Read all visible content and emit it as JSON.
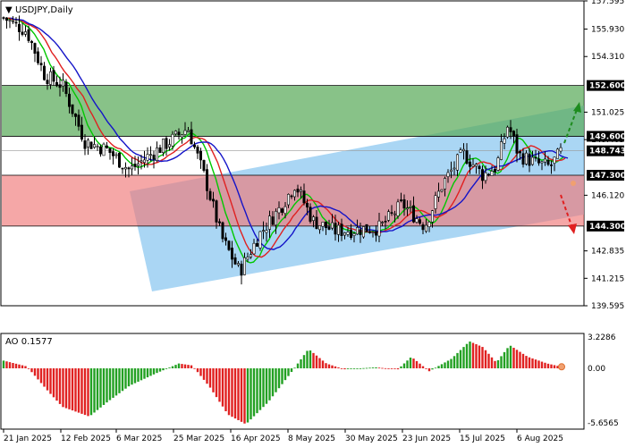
{
  "symbol_title": "USDJPY,Daily",
  "ao_label": "AO 0.1577",
  "colors": {
    "bull": "#000000",
    "bear": "#000000",
    "ma_fast": "#00c800",
    "ma_mid": "#e02020",
    "ma_slow": "#1414c8",
    "ao_up": "#22a022",
    "ao_down": "#e02020",
    "green_zone": "#5aaa5a",
    "red_zone": "#f07878",
    "channel": "#8ec8f0",
    "tag_bg": "#000000"
  },
  "price_axis": {
    "ticks": [
      "157.595",
      "155.930",
      "154.310",
      "151.025",
      "149.405",
      "146.120",
      "142.835",
      "141.215",
      "139.595"
    ],
    "ylim": [
      139.595,
      157.595
    ]
  },
  "ao_axis": {
    "ticks": [
      "3.2286",
      "0.00",
      "-5.6565"
    ],
    "ylim": [
      -5.6565,
      3.2286
    ]
  },
  "date_axis": [
    "21 Jan 2025",
    "12 Feb 2025",
    "6 Mar 2025",
    "25 Mar 2025",
    "16 Apr 2025",
    "8 May 2025",
    "30 May 2025",
    "23 Jun 2025",
    "15 Jul 2025",
    "6 Aug 2025"
  ],
  "levels": [
    {
      "label": "152.600",
      "value": 152.6
    },
    {
      "label": "149.600",
      "value": 149.6
    },
    {
      "label": "148.743",
      "value": 148.743
    },
    {
      "label": "147.300",
      "value": 147.3
    },
    {
      "label": "144.300",
      "value": 144.3
    }
  ],
  "chart_data": {
    "type": "candlestick",
    "title": "USDJPY,Daily",
    "ylim": [
      139.595,
      157.595
    ],
    "x_labels": [
      "21 Jan 2025",
      "12 Feb 2025",
      "6 Mar 2025",
      "25 Mar 2025",
      "16 Apr 2025",
      "8 May 2025",
      "30 May 2025",
      "23 Jun 2025",
      "15 Jul 2025",
      "6 Aug 2025"
    ],
    "close_trend_points": [
      {
        "date": "21 Jan 2025",
        "close": 156.2
      },
      {
        "date": "12 Feb 2025",
        "close": 153.6
      },
      {
        "date": "6 Mar 2025",
        "close": 148.0
      },
      {
        "date": "25 Mar 2025",
        "close": 150.4
      },
      {
        "date": "16 Apr 2025",
        "close": 142.6
      },
      {
        "date": "8 May 2025",
        "close": 145.4
      },
      {
        "date": "30 May 2025",
        "close": 144.0
      },
      {
        "date": "23 Jun 2025",
        "close": 145.5
      },
      {
        "date": "15 Jul 2025",
        "close": 148.6
      },
      {
        "date": "6 Aug 2025",
        "close": 147.6
      },
      {
        "date": "end",
        "close": 148.743
      }
    ],
    "zones": [
      {
        "name": "resistance zone",
        "from": 149.6,
        "to": 152.6
      },
      {
        "name": "support zone",
        "from": 144.3,
        "to": 147.3
      }
    ],
    "ao_indicator": {
      "last_value": 0.1577
    }
  }
}
